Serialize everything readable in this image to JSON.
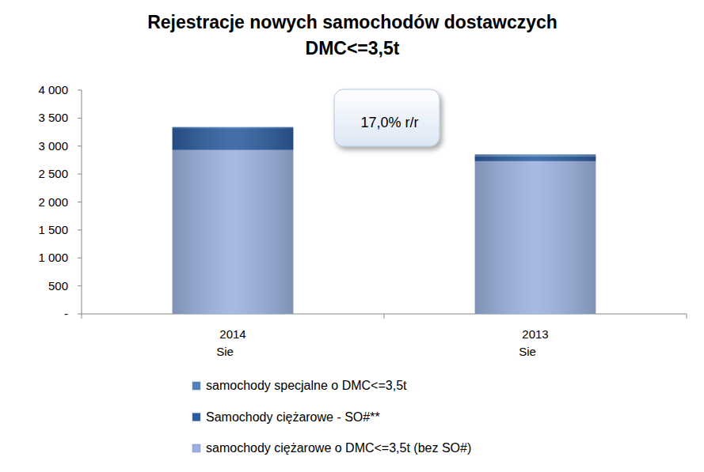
{
  "chart_data": {
    "type": "bar",
    "stacked": true,
    "title": "Rejestracje nowych samochodów dostawczych\nDMC<=3,5t",
    "annotation": "17,0% r/r",
    "categories": [
      "2014\nSie",
      "2013\nSie"
    ],
    "series": [
      {
        "name": "samochody ciężarowe o DMC<=3,5t (bez SO#)",
        "color": "#9cb1df",
        "values": [
          2930,
          2730
        ]
      },
      {
        "name": "Samochody ciężarowe - SO#**",
        "color": "#2c5c9e",
        "values": [
          390,
          90
        ]
      },
      {
        "name": "samochody specjalne o DMC<=3,5t",
        "color": "#4f81bd",
        "values": [
          20,
          30
        ]
      }
    ],
    "ylim": [
      0,
      4000
    ],
    "yticks": [
      {
        "value": 0,
        "label": "-"
      },
      500,
      {
        "value": 1000,
        "label": "1 000"
      },
      {
        "value": 1500,
        "label": "1 500"
      },
      {
        "value": 2000,
        "label": "2 000"
      },
      {
        "value": 2500,
        "label": "2 500"
      },
      {
        "value": 3000,
        "label": "3 000"
      },
      {
        "value": 3500,
        "label": "3 500"
      },
      {
        "value": 4000,
        "label": "4 000"
      }
    ],
    "grid": false,
    "legend": "bottom"
  }
}
